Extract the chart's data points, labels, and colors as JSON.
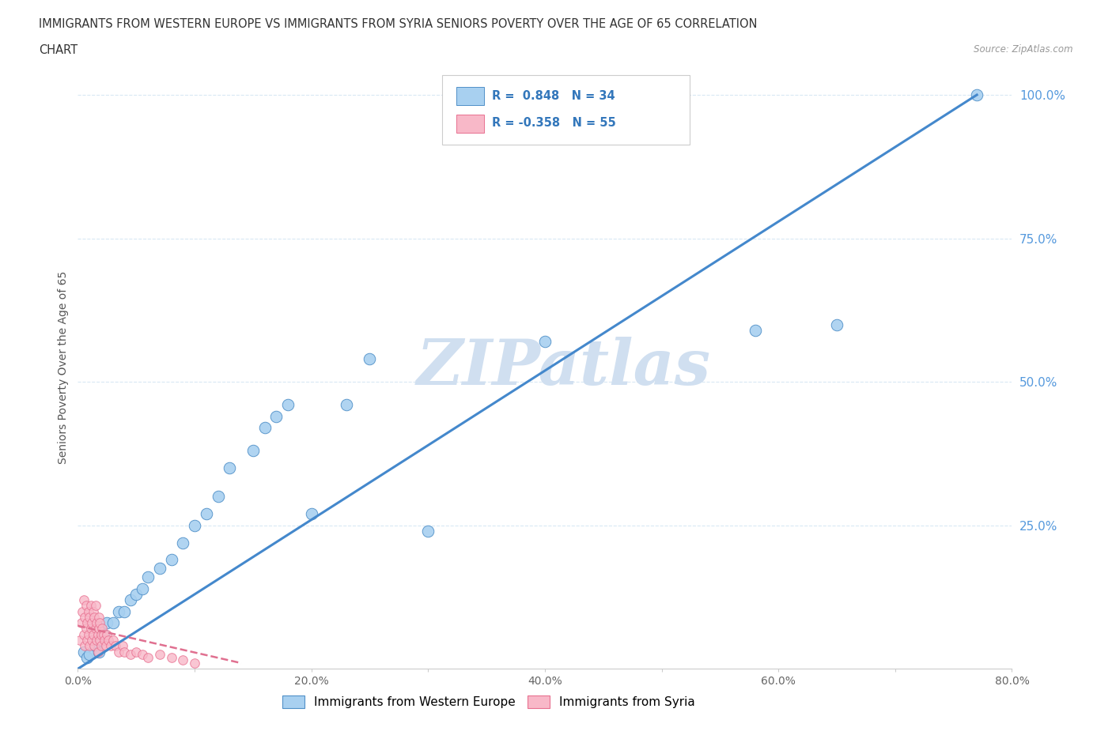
{
  "title_line1": "IMMIGRANTS FROM WESTERN EUROPE VS IMMIGRANTS FROM SYRIA SENIORS POVERTY OVER THE AGE OF 65 CORRELATION",
  "title_line2": "CHART",
  "source_text": "Source: ZipAtlas.com",
  "ylabel": "Seniors Poverty Over the Age of 65",
  "xmin": 0.0,
  "xmax": 0.8,
  "ymin": 0.0,
  "ymax": 1.05,
  "xtick_labels": [
    "0.0%",
    "",
    "20.0%",
    "",
    "40.0%",
    "",
    "60.0%",
    "",
    "80.0%"
  ],
  "xtick_vals": [
    0.0,
    0.1,
    0.2,
    0.3,
    0.4,
    0.5,
    0.6,
    0.7,
    0.8
  ],
  "ytick_labels": [
    "25.0%",
    "50.0%",
    "75.0%",
    "100.0%"
  ],
  "ytick_vals": [
    0.25,
    0.5,
    0.75,
    1.0
  ],
  "blue_R": 0.848,
  "blue_N": 34,
  "pink_R": -0.358,
  "pink_N": 55,
  "blue_color": "#A8D0F0",
  "pink_color": "#F8B8C8",
  "blue_edge_color": "#5090C8",
  "pink_edge_color": "#E87090",
  "blue_line_color": "#4488CC",
  "pink_line_color": "#E07090",
  "watermark": "ZIPatlas",
  "watermark_color": "#D0DFF0",
  "legend_label_blue": "Immigrants from Western Europe",
  "legend_label_pink": "Immigrants from Syria",
  "background_color": "#FFFFFF",
  "grid_color": "#D8E8F4",
  "blue_scatter_x": [
    0.005,
    0.008,
    0.01,
    0.015,
    0.018,
    0.02,
    0.022,
    0.025,
    0.03,
    0.035,
    0.04,
    0.045,
    0.05,
    0.055,
    0.06,
    0.07,
    0.08,
    0.09,
    0.1,
    0.11,
    0.12,
    0.13,
    0.15,
    0.16,
    0.17,
    0.18,
    0.2,
    0.23,
    0.25,
    0.3,
    0.4,
    0.58,
    0.65,
    0.77
  ],
  "blue_scatter_y": [
    0.03,
    0.02,
    0.025,
    0.04,
    0.03,
    0.05,
    0.06,
    0.08,
    0.08,
    0.1,
    0.1,
    0.12,
    0.13,
    0.14,
    0.16,
    0.175,
    0.19,
    0.22,
    0.25,
    0.27,
    0.3,
    0.35,
    0.38,
    0.42,
    0.44,
    0.46,
    0.27,
    0.46,
    0.54,
    0.24,
    0.57,
    0.59,
    0.6,
    1.0
  ],
  "pink_scatter_x": [
    0.002,
    0.003,
    0.004,
    0.005,
    0.005,
    0.006,
    0.006,
    0.007,
    0.007,
    0.008,
    0.008,
    0.009,
    0.009,
    0.01,
    0.01,
    0.011,
    0.011,
    0.012,
    0.012,
    0.013,
    0.013,
    0.014,
    0.014,
    0.015,
    0.015,
    0.016,
    0.016,
    0.017,
    0.017,
    0.018,
    0.018,
    0.019,
    0.019,
    0.02,
    0.02,
    0.021,
    0.022,
    0.023,
    0.024,
    0.025,
    0.026,
    0.028,
    0.03,
    0.032,
    0.035,
    0.038,
    0.04,
    0.045,
    0.05,
    0.055,
    0.06,
    0.07,
    0.08,
    0.09,
    0.1
  ],
  "pink_scatter_y": [
    0.05,
    0.08,
    0.1,
    0.06,
    0.12,
    0.04,
    0.09,
    0.07,
    0.11,
    0.05,
    0.08,
    0.06,
    0.1,
    0.04,
    0.09,
    0.07,
    0.11,
    0.05,
    0.08,
    0.06,
    0.1,
    0.04,
    0.09,
    0.07,
    0.11,
    0.05,
    0.08,
    0.06,
    0.03,
    0.09,
    0.07,
    0.05,
    0.08,
    0.06,
    0.04,
    0.07,
    0.06,
    0.05,
    0.04,
    0.06,
    0.05,
    0.04,
    0.05,
    0.04,
    0.03,
    0.04,
    0.03,
    0.025,
    0.03,
    0.025,
    0.02,
    0.025,
    0.02,
    0.015,
    0.01
  ],
  "blue_trendline_x": [
    0.0,
    0.77
  ],
  "blue_trendline_y": [
    0.0,
    1.0
  ],
  "pink_trendline_x": [
    0.0,
    0.14
  ],
  "pink_trendline_y": [
    0.075,
    0.01
  ]
}
